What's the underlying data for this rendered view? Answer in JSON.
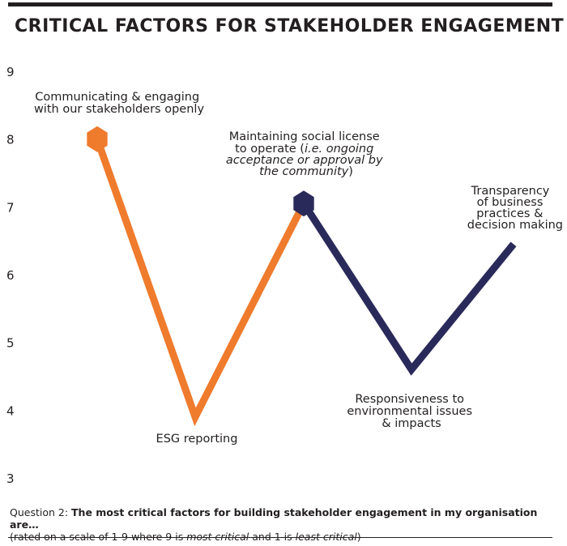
{
  "chart_data": {
    "type": "line",
    "title": "CRITICAL FACTORS FOR STAKEHOLDER ENGAGEMENT",
    "ylim": [
      3,
      9
    ],
    "yticks": [
      "9",
      "8",
      "7",
      "6",
      "5",
      "4",
      "3"
    ],
    "colors": {
      "orange": "#ef7b2d",
      "navy": "#2a2a5a",
      "text": "#231f20"
    },
    "points": [
      {
        "label": "Communicating & engaging with our stakeholders openly",
        "value": 8.0
      },
      {
        "label": "ESG reporting",
        "value": 3.9
      },
      {
        "label": "Maintaining social license to operate (i.e. ongoing acceptance or approval by the community)",
        "value": 7.05
      },
      {
        "label": "Responsiveness to environmental issues & impacts",
        "value": 4.6
      },
      {
        "label": "Transparency of business practices & decision making",
        "value": 6.45
      }
    ],
    "segments": [
      {
        "from": 0,
        "to": 2,
        "color": "orange"
      },
      {
        "from": 2,
        "to": 4,
        "color": "navy"
      }
    ],
    "annotations": {
      "communicating": [
        "Communicating & engaging",
        "with our stakeholders openly"
      ],
      "esg": "ESG reporting",
      "social_line1": "Maintaining social license",
      "social_line2a": "to operate (",
      "social_line2b": "i.e. ongoing",
      "social_line3": "acceptance or approval by",
      "social_line4a": "the community",
      "social_line4b": ")",
      "responsiveness": [
        "Responsiveness to",
        "environmental issues",
        "& impacts"
      ],
      "transparency": [
        "Transparency",
        "of business",
        "practices &",
        "decision making"
      ]
    }
  },
  "footnote": {
    "question_prefix": "Question 2: ",
    "question_bold": "The most critical factors for building stakeholder engagement in my organisation are…",
    "rated_prefix": "(rated on a scale of 1-9 where 9 is ",
    "most_critical": "most critical",
    "and_one_is": " and 1 is ",
    "least_critical": "least critical",
    "close_paren": ")"
  }
}
